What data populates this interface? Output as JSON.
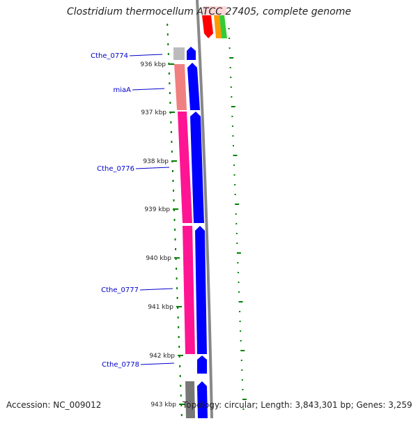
{
  "title": "Clostridium thermocellum ATCC 27405, complete genome",
  "accession": "Accession: NC_009012",
  "summary": "Topology: circular; Length: 3,843,301 bp; Genes: 3,259",
  "ticks": [
    {
      "label": "936 kbp",
      "kbp": 936
    },
    {
      "label": "937 kbp",
      "kbp": 937
    },
    {
      "label": "938 kbp",
      "kbp": 938
    },
    {
      "label": "939 kbp",
      "kbp": 939
    },
    {
      "label": "940 kbp",
      "kbp": 940
    },
    {
      "label": "941 kbp",
      "kbp": 941
    },
    {
      "label": "942 kbp",
      "kbp": 942
    },
    {
      "label": "943 kbp",
      "kbp": 943
    }
  ],
  "genes": [
    {
      "name": "Cthe_0774"
    },
    {
      "name": "miaA"
    },
    {
      "name": "Cthe_0776"
    },
    {
      "name": "Cthe_0777"
    },
    {
      "name": "Cthe_0778"
    }
  ],
  "colors": {
    "cds": "#0000ff",
    "gene_label": "#0000cc",
    "gc_skew": "#008000",
    "backbone": "#888888",
    "magenta_feature": "#ff1493",
    "salmon_feature": "#f08080",
    "gray_feature": "#999999",
    "red_feature": "#ff0000",
    "orange_feature": "#ff9900",
    "lightgreen_feature": "#33cc33"
  }
}
